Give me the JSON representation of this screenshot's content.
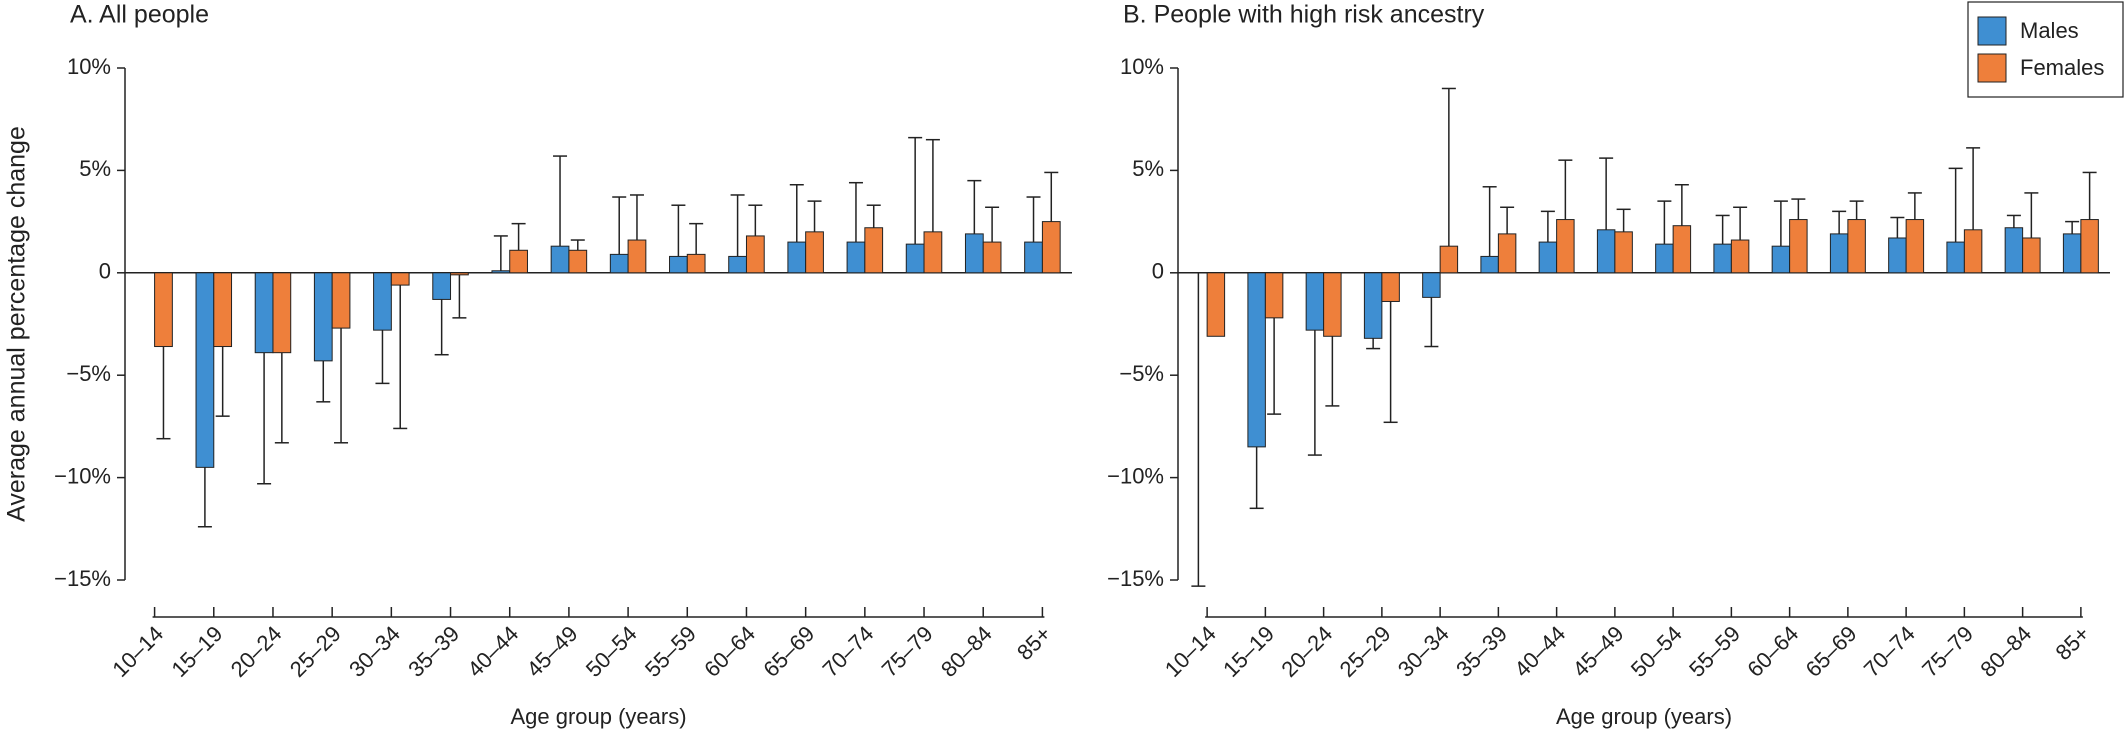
{
  "chart_data": [
    {
      "type": "bar",
      "title": "A.  All people",
      "ylabel": "Average annual percentage change",
      "xlabel": "Age group (years)",
      "categories": [
        "10–14",
        "15–19",
        "20–24",
        "25–29",
        "30–34",
        "35–39",
        "40–44",
        "45–49",
        "50–54",
        "55–59",
        "60–64",
        "65–69",
        "70–74",
        "75–79",
        "80–84",
        "85+"
      ],
      "series": [
        {
          "name": "Males",
          "color": "#3f8fd2",
          "values": [
            null,
            -9.5,
            -3.9,
            -4.3,
            -2.8,
            -1.3,
            0.1,
            1.3,
            0.9,
            0.8,
            0.8,
            1.5,
            1.5,
            1.4,
            1.9,
            1.5
          ],
          "ci": [
            null,
            -12.4,
            -10.3,
            -6.3,
            -5.4,
            -4.0,
            1.8,
            5.7,
            3.7,
            3.3,
            3.8,
            4.3,
            4.4,
            6.6,
            4.5,
            3.7
          ]
        },
        {
          "name": "Females",
          "color": "#ee7f3b",
          "values": [
            -3.6,
            -3.6,
            -3.9,
            -2.7,
            -0.6,
            -0.1,
            1.1,
            1.1,
            1.6,
            0.9,
            1.8,
            2.0,
            2.2,
            2.0,
            1.5,
            2.5
          ],
          "ci": [
            -8.1,
            -7.0,
            -8.3,
            -8.3,
            -7.6,
            -2.2,
            2.4,
            1.6,
            3.8,
            2.4,
            3.3,
            3.5,
            3.3,
            6.5,
            3.2,
            4.9
          ]
        }
      ],
      "ylim": [
        -15,
        10
      ],
      "yticks": [
        {
          "value": 10,
          "label": "10%"
        },
        {
          "value": 5,
          "label": "5%"
        },
        0,
        {
          "value": -5,
          "label": "−5%"
        },
        {
          "value": -10,
          "label": "−10%"
        },
        {
          "value": -15,
          "label": "−15%"
        }
      ]
    },
    {
      "type": "bar",
      "title": "B.  People with high risk ancestry",
      "xlabel": "Age group (years)",
      "categories": [
        "10–14",
        "15–19",
        "20–24",
        "25–29",
        "30–34",
        "35–39",
        "40–44",
        "45–49",
        "50–54",
        "55–59",
        "60–64",
        "65–69",
        "70–74",
        "75–79",
        "80–84",
        "85+"
      ],
      "series": [
        {
          "name": "Males",
          "color": "#3f8fd2",
          "values": [
            0,
            -8.5,
            -2.8,
            -3.2,
            -1.2,
            0.8,
            1.5,
            2.1,
            1.4,
            1.4,
            1.3,
            1.9,
            1.7,
            1.5,
            2.2,
            1.9
          ],
          "ci": [
            -15.3,
            -11.5,
            -8.9,
            -3.7,
            -3.6,
            4.2,
            3.0,
            5.6,
            3.5,
            2.8,
            3.5,
            3.0,
            2.7,
            5.1,
            2.8,
            2.5
          ]
        },
        {
          "name": "Females",
          "color": "#ee7f3b",
          "values": [
            -3.1,
            -2.2,
            -3.1,
            -1.4,
            1.3,
            1.9,
            2.6,
            2.0,
            2.3,
            1.6,
            2.6,
            2.6,
            2.6,
            2.1,
            1.7,
            2.6
          ],
          "ci": [
            null,
            -6.9,
            -6.5,
            -7.3,
            9.0,
            3.2,
            5.5,
            3.1,
            4.3,
            3.2,
            3.6,
            3.5,
            3.9,
            6.1,
            3.9,
            4.9
          ]
        }
      ],
      "ylim": [
        -15,
        10
      ],
      "yticks": [
        {
          "value": 10,
          "label": "10%"
        },
        {
          "value": 5,
          "label": "5%"
        },
        0,
        {
          "value": -5,
          "label": "−5%"
        },
        {
          "value": -10,
          "label": "−10%"
        },
        {
          "value": -15,
          "label": "−15%"
        }
      ],
      "legend": "upper right"
    }
  ]
}
